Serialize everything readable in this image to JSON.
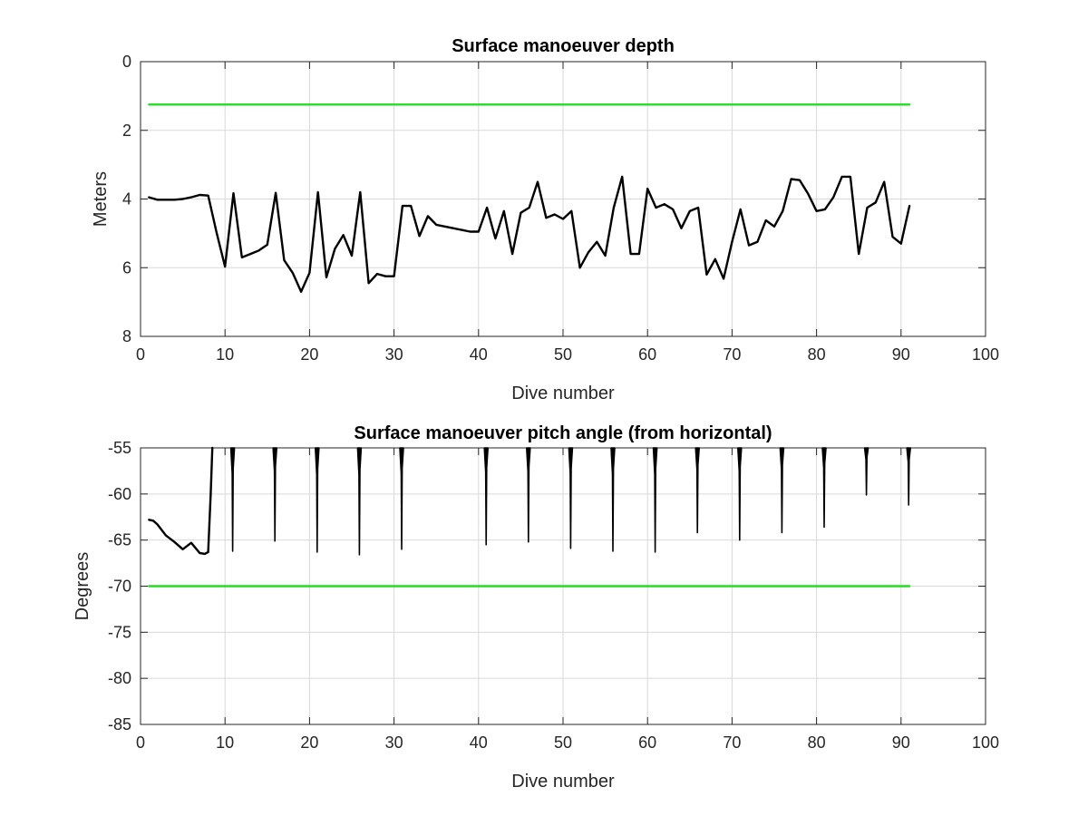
{
  "chart_data": [
    {
      "type": "line",
      "title": "Surface manoeuver depth",
      "xlabel": "Dive number",
      "ylabel": "Meters",
      "xlim": [
        0,
        100
      ],
      "ylim": [
        0,
        8
      ],
      "y_reversed": true,
      "grid": true,
      "x_ticks": [
        "0",
        "10",
        "20",
        "30",
        "40",
        "50",
        "60",
        "70",
        "80",
        "90",
        "100"
      ],
      "y_ticks": [
        "0",
        "2",
        "4",
        "6",
        "8"
      ],
      "series": [
        {
          "color": "#22dd22",
          "x": [
            1,
            91
          ],
          "y": [
            1.25,
            1.25
          ]
        },
        {
          "color": "#000000",
          "x": [
            1,
            2,
            3,
            4,
            5,
            6,
            7,
            8,
            9,
            10,
            11,
            12,
            13,
            14,
            15,
            16,
            17,
            18,
            19,
            20,
            21,
            22,
            23,
            24,
            25,
            26,
            27,
            28,
            29,
            30,
            31,
            32,
            33,
            34,
            35,
            36,
            37,
            38,
            39,
            40,
            41,
            42,
            43,
            44,
            45,
            46,
            47,
            48,
            49,
            50,
            51,
            52,
            53,
            54,
            55,
            56,
            57,
            58,
            59,
            60,
            61,
            62,
            63,
            64,
            65,
            66,
            67,
            68,
            69,
            70,
            71,
            72,
            73,
            74,
            75,
            76,
            77,
            78,
            79,
            80,
            81,
            82,
            83,
            84,
            85,
            86,
            87,
            88,
            89,
            90,
            91
          ],
          "y": [
            3.95,
            4.02,
            4.02,
            4.02,
            4.0,
            3.95,
            3.88,
            3.9,
            4.98,
            5.97,
            3.83,
            5.7,
            5.6,
            5.5,
            5.33,
            3.82,
            5.78,
            6.15,
            6.7,
            6.15,
            3.8,
            6.28,
            5.45,
            5.05,
            5.65,
            3.8,
            6.45,
            6.18,
            6.25,
            6.25,
            4.2,
            4.2,
            5.08,
            4.5,
            4.75,
            4.8,
            4.85,
            4.9,
            4.95,
            4.95,
            4.25,
            5.15,
            4.35,
            5.6,
            4.4,
            4.25,
            3.5,
            4.55,
            4.45,
            4.58,
            4.35,
            6.0,
            5.55,
            5.25,
            5.65,
            4.25,
            3.35,
            5.6,
            5.6,
            3.7,
            4.25,
            4.15,
            4.3,
            4.85,
            4.35,
            4.25,
            6.2,
            5.75,
            6.32,
            5.25,
            4.3,
            5.35,
            5.25,
            4.62,
            4.8,
            4.35,
            3.42,
            3.45,
            3.85,
            4.35,
            4.3,
            3.95,
            3.35,
            3.35,
            5.6,
            4.25,
            4.1,
            3.5,
            5.1,
            5.3,
            4.2
          ]
        }
      ]
    },
    {
      "type": "line",
      "title": "Surface manoeuver pitch angle (from horizontal)",
      "xlabel": "Dive number",
      "ylabel": "Degrees",
      "xlim": [
        0,
        100
      ],
      "ylim": [
        -85,
        -55
      ],
      "grid": true,
      "x_ticks": [
        "0",
        "10",
        "20",
        "30",
        "40",
        "50",
        "60",
        "70",
        "80",
        "90",
        "100"
      ],
      "y_ticks": [
        "-55",
        "-60",
        "-65",
        "-70",
        "-75",
        "-80",
        "-85"
      ],
      "series": [
        {
          "color": "#22dd22",
          "x": [
            1,
            91
          ],
          "y": [
            -70,
            -70
          ]
        },
        {
          "color": "#000000",
          "x": [
            1,
            1.5,
            2,
            3,
            4,
            5,
            6,
            7,
            7.6,
            8,
            8.3,
            8.5
          ],
          "y": [
            -62.8,
            -62.9,
            -63.3,
            -64.5,
            -65.2,
            -66.0,
            -65.3,
            -66.4,
            -66.5,
            -66.3,
            -60.0,
            -55.0
          ]
        }
      ],
      "spikes": [
        {
          "x": 10.9,
          "y_min": -66.2
        },
        {
          "x": 15.9,
          "y_min": -65.1
        },
        {
          "x": 20.9,
          "y_min": -66.3
        },
        {
          "x": 25.9,
          "y_min": -66.6
        },
        {
          "x": 30.9,
          "y_min": -66.0
        },
        {
          "x": 40.9,
          "y_min": -65.5
        },
        {
          "x": 45.9,
          "y_min": -65.2
        },
        {
          "x": 50.9,
          "y_min": -65.9
        },
        {
          "x": 55.9,
          "y_min": -66.2
        },
        {
          "x": 60.9,
          "y_min": -66.3
        },
        {
          "x": 65.9,
          "y_min": -64.2
        },
        {
          "x": 70.9,
          "y_min": -65.0
        },
        {
          "x": 75.9,
          "y_min": -64.2
        },
        {
          "x": 80.9,
          "y_min": -63.6
        },
        {
          "x": 85.9,
          "y_min": -60.1
        },
        {
          "x": 90.9,
          "y_min": -61.2
        }
      ]
    }
  ]
}
